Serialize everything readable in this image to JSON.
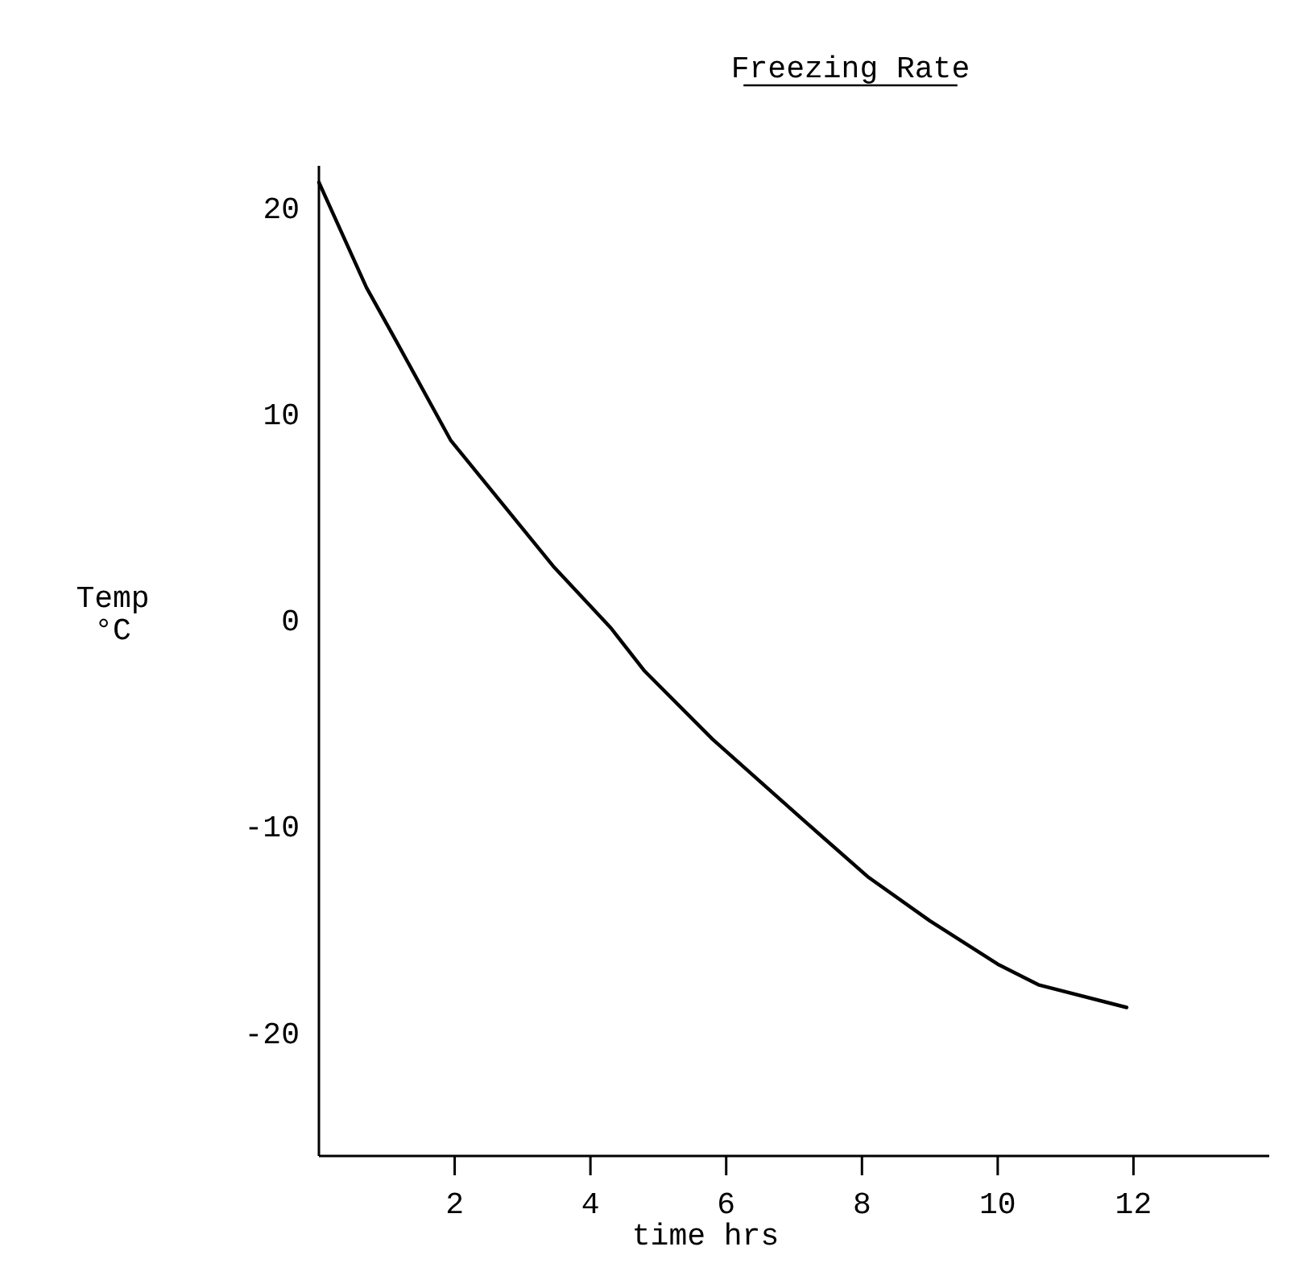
{
  "chart_data": {
    "type": "line",
    "title": "Freezing Rate",
    "xlabel": "time hrs",
    "ylabel": "Temp °C",
    "x": [
      0,
      0.7,
      1.14,
      1.94,
      3.45,
      4.3,
      4.8,
      5.8,
      7.2,
      8.1,
      9.0,
      10,
      10.6,
      11.9
    ],
    "series": [
      {
        "color": "#000000",
        "values": [
          21.2,
          16.1,
          13.5,
          8.7,
          2.6,
          -0.4,
          -2.5,
          -5.8,
          -9.9,
          -12.5,
          -14.6,
          -16.7,
          -17.7,
          -18.8
        ]
      }
    ],
    "xlim": [
      0,
      14
    ],
    "ylim": [
      -26,
      22
    ],
    "xticks": [
      2,
      4,
      6,
      8,
      10,
      12
    ],
    "yticks": [
      -20,
      -10,
      0,
      10,
      20
    ],
    "grid": false,
    "marker": "none",
    "line_style": "solid"
  }
}
